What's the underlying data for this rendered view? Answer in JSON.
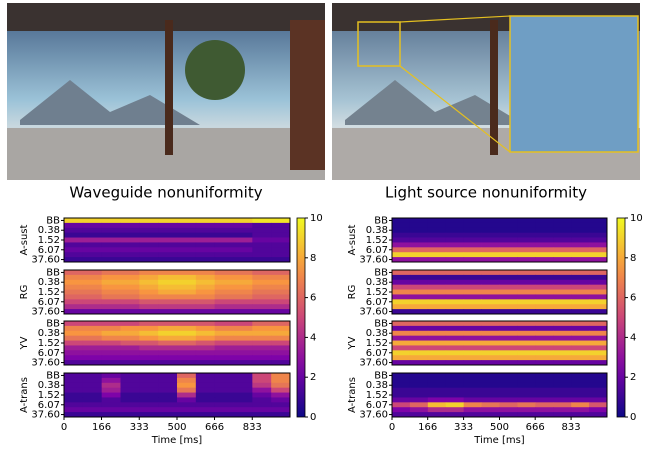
{
  "images": [
    {
      "caption": "Waveguide nonuniformity"
    },
    {
      "caption": "Light source nonuniformity"
    }
  ],
  "chart_data": [
    {
      "type": "heatmap",
      "colormap": "plasma",
      "clim": [
        0,
        10
      ],
      "cticks": [
        0,
        2,
        4,
        6,
        8,
        10
      ],
      "rows": [
        "BB",
        null,
        "0.38",
        null,
        "1.52",
        null,
        "6.07",
        null,
        "37.60"
      ],
      "xlim": [
        0,
        1000
      ],
      "xticks": [
        0,
        166,
        333,
        500,
        666,
        833
      ],
      "xlabel": "Time [ms]",
      "panels": [
        {
          "ylabel": "A-sust",
          "values": [
            [
              9,
              9,
              9,
              9,
              9,
              9,
              9,
              9,
              9,
              9,
              9.5,
              9.5
            ],
            [
              2,
              2,
              2,
              2,
              2,
              2,
              2,
              2,
              2,
              2,
              1.5,
              1.5
            ],
            [
              1.5,
              1.5,
              1.5,
              1.5,
              1.5,
              1.5,
              1.5,
              1.5,
              1.5,
              1.5,
              1.5,
              1.5
            ],
            [
              1,
              1,
              1,
              1,
              1,
              1,
              1,
              1,
              1,
              1,
              1.5,
              1.5
            ],
            [
              3.5,
              3.5,
              3.5,
              3.5,
              3.5,
              3.5,
              3.5,
              3.5,
              3.5,
              3.5,
              2,
              2
            ],
            [
              1.5,
              1.5,
              1.5,
              1.5,
              1.5,
              1.5,
              1.5,
              1.5,
              1.5,
              1.5,
              1.5,
              1.5
            ],
            [
              2,
              2,
              2,
              2,
              2,
              2,
              2,
              2,
              2,
              2,
              1.5,
              1.5
            ],
            [
              1.5,
              1.5,
              1.5,
              1.5,
              1.5,
              1.5,
              1.5,
              1.5,
              1.5,
              1.5,
              1.5,
              1.5
            ],
            [
              1,
              1,
              1,
              1,
              1,
              1,
              1,
              1,
              1,
              1,
              1,
              1
            ]
          ]
        },
        {
          "ylabel": "RG",
          "values": [
            [
              6,
              6,
              6.5,
              6.5,
              7,
              7,
              7,
              7,
              6.5,
              6.5,
              6,
              6
            ],
            [
              7,
              7,
              7.5,
              7.5,
              8,
              8.5,
              8.5,
              8,
              7.5,
              7.5,
              7,
              7
            ],
            [
              7.5,
              7.5,
              8,
              8,
              8.5,
              9,
              9,
              8.5,
              8,
              8,
              7.5,
              7.5
            ],
            [
              7,
              7,
              7.5,
              7.5,
              8,
              8.5,
              8.5,
              8,
              7.5,
              7.5,
              7,
              7
            ],
            [
              6.5,
              6.5,
              7,
              7,
              7.5,
              8,
              8,
              7.5,
              7,
              7,
              6.5,
              6.5
            ],
            [
              6,
              6,
              6.5,
              6.5,
              7,
              7,
              7,
              7,
              6.5,
              6.5,
              6,
              6
            ],
            [
              5,
              5,
              5,
              5,
              5.5,
              5.5,
              5.5,
              5.5,
              5,
              5,
              5,
              5
            ],
            [
              4,
              4,
              4,
              4,
              4.5,
              4.5,
              4.5,
              4.5,
              4,
              4,
              4,
              4
            ],
            [
              2,
              2,
              2,
              2,
              2,
              2,
              2,
              2,
              2,
              2,
              2,
              2
            ]
          ]
        },
        {
          "ylabel": "YV",
          "values": [
            [
              5,
              5,
              5,
              5,
              5.5,
              5.5,
              5.5,
              5.5,
              5,
              5,
              6,
              6
            ],
            [
              7,
              7,
              7,
              7.5,
              7.5,
              8,
              8,
              7.5,
              7,
              7,
              7.5,
              7.5
            ],
            [
              7.5,
              7.5,
              8,
              8,
              8.5,
              9,
              9,
              8.5,
              8,
              8,
              8,
              8
            ],
            [
              6.5,
              6.5,
              7,
              7,
              7.5,
              8,
              8,
              7.5,
              7,
              7,
              7,
              7
            ],
            [
              5,
              5,
              5,
              5.5,
              5.5,
              6,
              6,
              5.5,
              5,
              5,
              5,
              5
            ],
            [
              3.5,
              3.5,
              3.5,
              3.5,
              4,
              4,
              4,
              4,
              3.5,
              3.5,
              3.5,
              3.5
            ],
            [
              3,
              3,
              3,
              3,
              3,
              3,
              3,
              3,
              3,
              3,
              3,
              3
            ],
            [
              2.5,
              2.5,
              2.5,
              2.5,
              2.5,
              2.5,
              2.5,
              2.5,
              2.5,
              2.5,
              2.5,
              2.5
            ],
            [
              1.5,
              1.5,
              1.5,
              1.5,
              1.5,
              1.5,
              1.5,
              1.5,
              1.5,
              1.5,
              1.5,
              1.5
            ]
          ]
        },
        {
          "ylabel": "A-trans",
          "values": [
            [
              1.5,
              1.5,
              2,
              1.5,
              1.5,
              1.5,
              6,
              1.5,
              1.5,
              1.5,
              5,
              7
            ],
            [
              1.5,
              1.5,
              3,
              1.5,
              1.5,
              1.5,
              7,
              1.5,
              1.5,
              1.5,
              5,
              7
            ],
            [
              1.5,
              1.5,
              4,
              1.5,
              1.5,
              1.5,
              7.5,
              1.5,
              1.5,
              1.5,
              4.5,
              6.5
            ],
            [
              1.5,
              1.5,
              3.5,
              1.5,
              1.5,
              1.5,
              6.5,
              1.5,
              1.5,
              1.5,
              3,
              5
            ],
            [
              1,
              1,
              2.5,
              1,
              1,
              1,
              4,
              1,
              1,
              1,
              2,
              3
            ],
            [
              1,
              1,
              1.5,
              1,
              1,
              1,
              2,
              1,
              1,
              1,
              1.5,
              2
            ],
            [
              1.5,
              1.5,
              1.5,
              1.5,
              1.5,
              1.5,
              1.5,
              1.5,
              1.5,
              1.5,
              1.5,
              1.5
            ],
            [
              2,
              2,
              2,
              2,
              2,
              2,
              2,
              2,
              2,
              2,
              2,
              2
            ],
            [
              1,
              1,
              1,
              1,
              1,
              1,
              1,
              1,
              1,
              1,
              1,
              1
            ]
          ]
        }
      ]
    },
    {
      "type": "heatmap",
      "colormap": "plasma",
      "clim": [
        0,
        10
      ],
      "cticks": [
        0,
        2,
        4,
        6,
        8,
        10
      ],
      "rows": [
        "BB",
        null,
        "0.38",
        null,
        "1.52",
        null,
        "6.07",
        null,
        "37.60"
      ],
      "xlim": [
        0,
        1000
      ],
      "xticks": [
        0,
        166,
        333,
        500,
        666,
        833
      ],
      "xlabel": "Time [ms]",
      "panels": [
        {
          "ylabel": "A-sust",
          "values": [
            [
              0.5,
              0.5,
              0.5,
              0.5,
              0.5,
              0.5,
              0.5,
              0.5,
              0.5,
              0.5,
              0.5,
              0.5
            ],
            [
              0.5,
              0.5,
              0.5,
              0.5,
              0.5,
              0.5,
              0.5,
              0.5,
              0.5,
              0.5,
              0.5,
              0.5
            ],
            [
              0.5,
              0.5,
              0.5,
              0.5,
              0.5,
              0.5,
              0.5,
              0.5,
              0.5,
              0.5,
              0.5,
              0.5
            ],
            [
              1,
              1,
              1,
              1,
              1,
              1,
              1,
              1,
              1,
              1,
              1,
              1
            ],
            [
              1.5,
              1.5,
              1.5,
              1.5,
              1.5,
              1.5,
              1.5,
              1.5,
              1.5,
              1.5,
              1.5,
              1.5
            ],
            [
              3,
              3,
              3,
              3,
              3,
              3,
              3,
              3,
              3,
              3,
              3,
              3
            ],
            [
              6,
              6,
              6,
              6,
              6,
              6,
              6,
              6,
              6,
              6,
              6,
              6
            ],
            [
              9,
              9,
              9,
              9,
              9,
              9,
              9,
              9,
              9,
              9,
              9,
              9
            ],
            [
              3,
              3,
              3,
              3,
              3,
              3,
              3,
              3,
              3,
              3,
              3,
              3
            ]
          ]
        },
        {
          "ylabel": "RG",
          "values": [
            [
              6,
              6,
              6,
              6,
              6,
              6,
              6,
              6,
              6,
              6,
              6,
              6
            ],
            [
              1,
              1,
              1,
              1,
              1,
              1,
              1,
              1,
              1,
              1,
              1,
              1
            ],
            [
              2,
              2,
              2,
              2,
              2,
              2,
              2,
              2,
              2,
              2,
              2,
              2
            ],
            [
              5,
              5,
              5,
              5,
              5,
              5,
              5,
              5,
              5,
              5,
              5,
              5
            ],
            [
              7,
              7,
              7,
              7,
              7,
              7,
              7,
              7,
              7,
              7,
              7,
              7
            ],
            [
              3,
              3,
              3,
              3,
              3,
              3,
              3,
              3,
              3,
              3,
              3,
              3
            ],
            [
              9,
              9,
              9,
              9,
              9,
              9,
              9,
              9,
              9,
              9,
              9,
              9
            ],
            [
              8,
              8,
              8,
              8,
              8,
              8,
              8,
              8,
              8,
              8,
              8,
              8
            ],
            [
              1,
              1,
              1,
              1,
              1,
              1,
              1,
              1,
              1,
              1,
              1,
              1
            ]
          ]
        },
        {
          "ylabel": "YV",
          "values": [
            [
              6,
              6,
              6,
              6,
              6,
              6,
              6,
              6,
              6,
              6,
              6,
              6
            ],
            [
              2,
              2,
              2,
              2,
              2,
              2,
              2,
              2,
              2,
              2,
              2,
              2
            ],
            [
              7,
              7,
              7,
              7,
              7,
              7,
              7,
              7,
              7,
              7,
              7,
              7
            ],
            [
              3,
              3,
              3,
              3,
              3,
              3,
              3,
              3,
              3,
              3,
              3,
              3
            ],
            [
              8,
              8,
              8,
              8,
              8,
              8,
              8,
              8,
              8,
              8,
              8,
              8
            ],
            [
              5,
              5,
              5,
              5,
              5,
              5,
              5,
              5,
              5,
              5,
              5,
              5
            ],
            [
              9,
              9,
              9,
              9,
              9,
              9,
              9,
              9,
              9,
              9,
              9,
              9
            ],
            [
              8,
              8,
              8,
              8,
              8,
              8,
              8,
              8,
              8,
              8,
              8,
              8
            ],
            [
              2,
              2,
              2,
              2,
              2,
              2,
              2,
              2,
              2,
              2,
              2,
              2
            ]
          ]
        },
        {
          "ylabel": "A-trans",
          "values": [
            [
              0.5,
              0.5,
              0.5,
              0.5,
              0.5,
              0.5,
              0.5,
              0.5,
              0.5,
              0.5,
              0.5,
              0.5
            ],
            [
              0.5,
              0.5,
              0.5,
              0.5,
              0.5,
              0.5,
              0.5,
              0.5,
              0.5,
              0.5,
              0.5,
              0.5
            ],
            [
              0.5,
              0.5,
              0.5,
              0.5,
              0.5,
              0.5,
              0.5,
              0.5,
              0.5,
              0.5,
              0.5,
              0.5
            ],
            [
              1,
              1,
              1,
              1,
              1,
              1,
              1,
              1,
              1,
              1,
              1,
              1
            ],
            [
              1,
              1,
              1,
              1,
              1,
              1,
              1,
              1,
              1,
              1,
              1,
              1
            ],
            [
              2,
              2,
              2.5,
              2.5,
              2,
              2,
              2,
              2,
              2,
              2,
              2,
              2
            ],
            [
              5,
              6,
              8.5,
              9,
              7,
              6.5,
              6,
              6.5,
              6,
              6,
              7,
              5.5
            ],
            [
              2.5,
              3,
              4,
              4,
              3,
              3,
              3,
              3,
              3,
              3,
              3,
              2.5
            ],
            [
              1.5,
              1.5,
              1.5,
              1.5,
              1.5,
              1.5,
              1.5,
              1.5,
              1.5,
              1.5,
              1.5,
              1.5
            ]
          ]
        }
      ]
    }
  ]
}
